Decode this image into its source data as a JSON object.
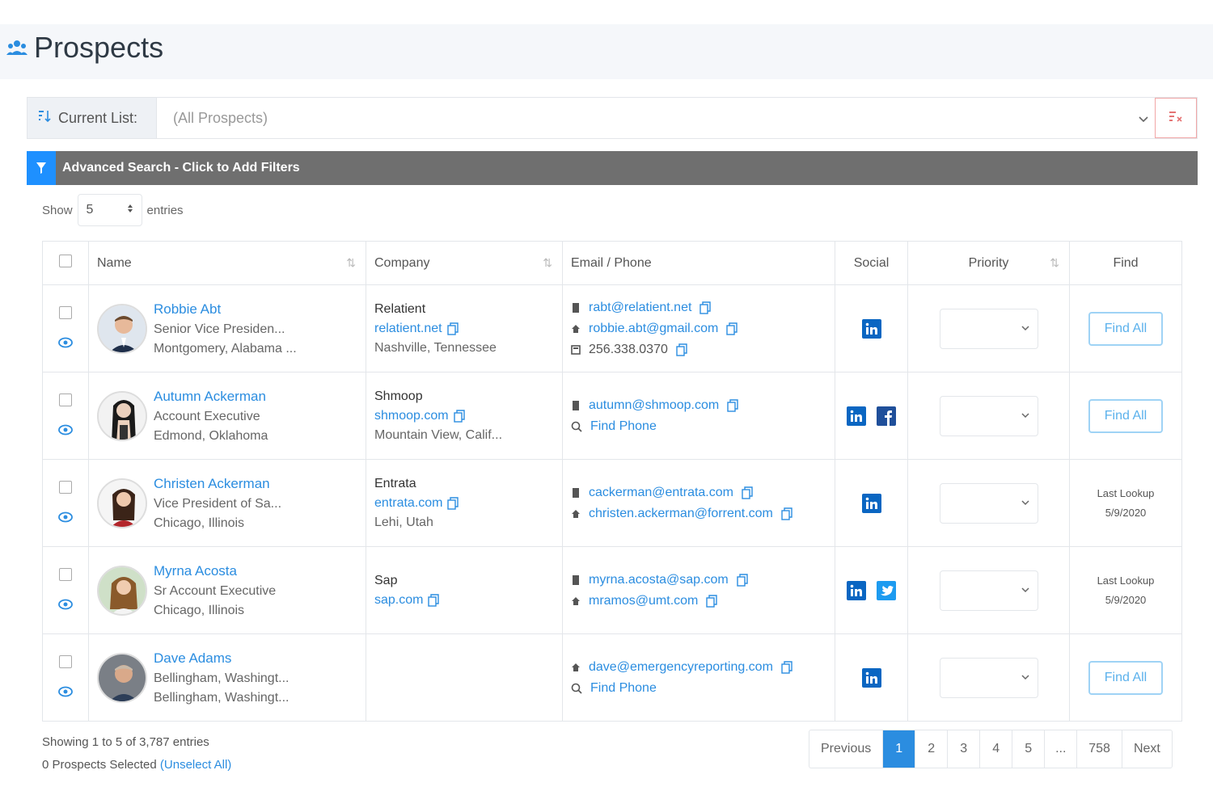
{
  "header": {
    "title": "Prospects",
    "icon": "people-icon"
  },
  "current_list": {
    "label": "Current List:",
    "value": "(All Prospects)"
  },
  "advanced_search": {
    "label": "Advanced Search - Click to Add Filters"
  },
  "length": {
    "show": "Show",
    "value": "5",
    "entries": "entries"
  },
  "columns": {
    "name": "Name",
    "company": "Company",
    "email_phone": "Email / Phone",
    "social": "Social",
    "priority": "Priority",
    "find": "Find"
  },
  "rows": [
    {
      "name": "Robbie Abt",
      "title": "Senior Vice Presiden...",
      "location": "Montgomery, Alabama ...",
      "company": "Relatient",
      "domain": "relatient.net",
      "company_location": "Nashville, Tennessee",
      "contacts": [
        {
          "type": "work",
          "text": "rabt@relatient.net"
        },
        {
          "type": "home",
          "text": "robbie.abt@gmail.com"
        },
        {
          "type": "phone",
          "text": "256.338.0370"
        }
      ],
      "find_label": "Find All"
    },
    {
      "name": "Autumn Ackerman",
      "title": "Account Executive",
      "location": "Edmond, Oklahoma",
      "company": "Shmoop",
      "domain": "shmoop.com",
      "company_location": "Mountain View, Calif...",
      "contacts": [
        {
          "type": "work",
          "text": "autumn@shmoop.com"
        },
        {
          "type": "find",
          "text": "Find Phone"
        }
      ],
      "find_label": "Find All"
    },
    {
      "name": "Christen Ackerman",
      "title": "Vice President of Sa...",
      "location": "Chicago, Illinois",
      "company": "Entrata",
      "domain": "entrata.com",
      "company_location": "Lehi, Utah",
      "contacts": [
        {
          "type": "work",
          "text": "cackerman@entrata.com"
        },
        {
          "type": "home",
          "text": "christen.ackerman@forrent.com"
        }
      ],
      "last_lookup_label": "Last Lookup",
      "last_lookup_date": "5/9/2020"
    },
    {
      "name": "Myrna Acosta",
      "title": "Sr Account Executive",
      "location": "Chicago, Illinois",
      "company": "Sap",
      "domain": "sap.com",
      "contacts": [
        {
          "type": "work",
          "text": "myrna.acosta@sap.com"
        },
        {
          "type": "home",
          "text": "mramos@umt.com"
        }
      ],
      "last_lookup_label": "Last Lookup",
      "last_lookup_date": "5/9/2020"
    },
    {
      "name": "Dave Adams",
      "title": "Bellingham, Washingt...",
      "location": "Bellingham, Washingt...",
      "contacts": [
        {
          "type": "home",
          "text": "dave@emergencyreporting.com"
        },
        {
          "type": "find",
          "text": "Find Phone"
        }
      ],
      "find_label": "Find All"
    }
  ],
  "footer": {
    "showing": "Showing 1 to 5 of 3,787 entries",
    "selected": "0 Prospects Selected",
    "unselect": "(Unselect All)"
  },
  "pagination": {
    "previous": "Previous",
    "pages": [
      "1",
      "2",
      "3",
      "4",
      "5",
      "...",
      "758"
    ],
    "active": "1",
    "next": "Next"
  },
  "colors": {
    "accent": "#2b8de0",
    "search_bar": "#6f6f6f",
    "filter_icon_bg": "#1e90ff"
  }
}
